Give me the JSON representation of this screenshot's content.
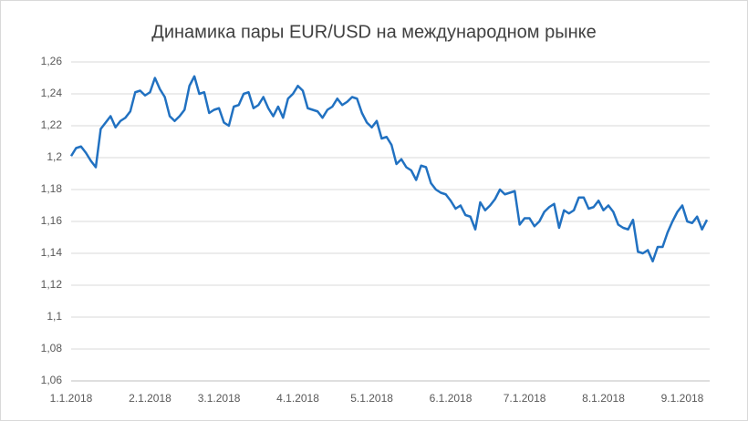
{
  "chart_data": {
    "type": "line",
    "title": "Динамика пары EUR/USD на международном рынке",
    "categories": [
      "1.1.2018",
      null,
      null,
      null,
      null,
      null,
      null,
      null,
      null,
      null,
      null,
      null,
      null,
      null,
      null,
      null,
      "2.1.2018",
      null,
      null,
      null,
      null,
      null,
      null,
      null,
      null,
      null,
      null,
      null,
      null,
      null,
      "3.1.2018",
      null,
      null,
      null,
      null,
      null,
      null,
      null,
      null,
      null,
      null,
      null,
      null,
      null,
      null,
      null,
      "4.1.2018",
      null,
      null,
      null,
      null,
      null,
      null,
      null,
      null,
      null,
      null,
      null,
      null,
      null,
      null,
      "5.1.2018",
      null,
      null,
      null,
      null,
      null,
      null,
      null,
      null,
      null,
      null,
      null,
      null,
      null,
      null,
      null,
      "6.1.2018",
      null,
      null,
      null,
      null,
      null,
      null,
      null,
      null,
      null,
      null,
      null,
      null,
      null,
      null,
      "7.1.2018",
      null,
      null,
      null,
      null,
      null,
      null,
      null,
      null,
      null,
      null,
      null,
      null,
      null,
      null,
      null,
      "8.1.2018",
      null,
      null,
      null,
      null,
      null,
      null,
      null,
      null,
      null,
      null,
      null,
      null,
      null,
      null,
      null,
      "9.1.2018",
      null,
      null,
      null,
      null,
      null
    ],
    "series": [
      {
        "name": "EUR/USD",
        "color": "#2171c1",
        "values": [
          1.201,
          1.206,
          1.207,
          1.203,
          1.198,
          1.194,
          1.218,
          1.222,
          1.226,
          1.219,
          1.223,
          1.225,
          1.229,
          1.241,
          1.242,
          1.239,
          1.241,
          1.25,
          1.243,
          1.238,
          1.226,
          1.223,
          1.226,
          1.23,
          1.245,
          1.251,
          1.24,
          1.241,
          1.228,
          1.23,
          1.231,
          1.222,
          1.22,
          1.232,
          1.233,
          1.24,
          1.241,
          1.231,
          1.233,
          1.238,
          1.231,
          1.226,
          1.232,
          1.225,
          1.237,
          1.24,
          1.245,
          1.242,
          1.231,
          1.23,
          1.229,
          1.225,
          1.23,
          1.232,
          1.237,
          1.233,
          1.235,
          1.238,
          1.237,
          1.228,
          1.222,
          1.219,
          1.223,
          1.212,
          1.213,
          1.208,
          1.196,
          1.199,
          1.194,
          1.192,
          1.186,
          1.195,
          1.194,
          1.184,
          1.18,
          1.178,
          1.177,
          1.173,
          1.168,
          1.17,
          1.164,
          1.163,
          1.155,
          1.172,
          1.167,
          1.17,
          1.174,
          1.18,
          1.177,
          1.178,
          1.179,
          1.158,
          1.162,
          1.162,
          1.157,
          1.16,
          1.166,
          1.169,
          1.171,
          1.156,
          1.167,
          1.165,
          1.167,
          1.175,
          1.175,
          1.168,
          1.169,
          1.173,
          1.167,
          1.17,
          1.166,
          1.158,
          1.156,
          1.155,
          1.161,
          1.141,
          1.14,
          1.142,
          1.135,
          1.144,
          1.144,
          1.153,
          1.16,
          1.166,
          1.17,
          1.16,
          1.159,
          1.163,
          1.155,
          1.161
        ]
      }
    ],
    "ylim": [
      1.06,
      1.26
    ],
    "yticks": [
      {
        "value": 1.06,
        "label": "1,06"
      },
      {
        "value": 1.08,
        "label": "1,08"
      },
      {
        "value": 1.1,
        "label": "1,1"
      },
      {
        "value": 1.12,
        "label": "1,12"
      },
      {
        "value": 1.14,
        "label": "1,14"
      },
      {
        "value": 1.16,
        "label": "1,16"
      },
      {
        "value": 1.18,
        "label": "1,18"
      },
      {
        "value": 1.2,
        "label": "1,2"
      },
      {
        "value": 1.22,
        "label": "1,22"
      },
      {
        "value": 1.24,
        "label": "1,24"
      },
      {
        "value": 1.26,
        "label": "1,26"
      }
    ],
    "grid": true
  }
}
